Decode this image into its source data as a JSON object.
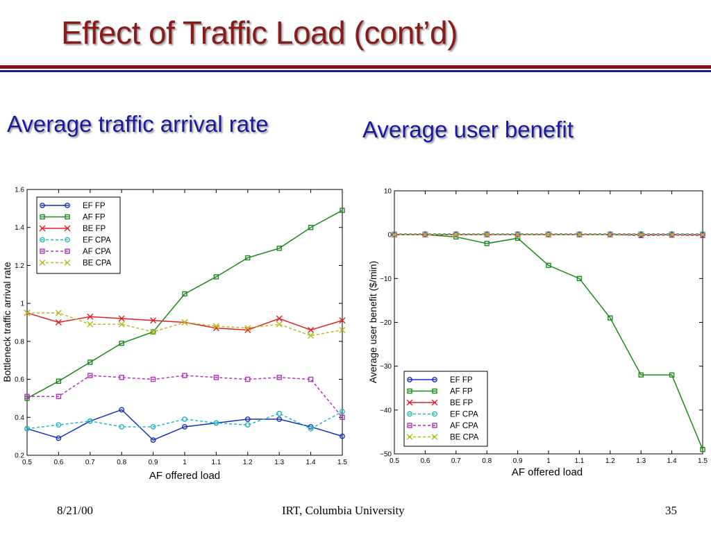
{
  "slide": {
    "title": "Effect of Traffic Load (cont’d)",
    "subtitle_left": "Average traffic arrival rate",
    "subtitle_right": "Average user benefit",
    "footer_date": "8/21/00",
    "footer_org": "IRT, Columbia University",
    "footer_page": "35"
  },
  "colors": {
    "title": "#8b1a1a",
    "subtitle": "#1a1aa0",
    "rule_red": "#8b0d1a",
    "rule_blue": "#1a1a8c",
    "EF": "#1030c0",
    "AF": "#188a18",
    "BE": "#e02020",
    "EF_CPA": "#20b8c0",
    "AF_CPA": "#b030c0",
    "BE_CPA": "#b8b820"
  },
  "chart_data": [
    {
      "type": "line",
      "xlabel": "AF offered load",
      "ylabel": "Bottleneck traffic arrival rate",
      "xlim": [
        0.5,
        1.5
      ],
      "ylim": [
        0.2,
        1.6
      ],
      "xticks": [
        "0.5",
        "0.6",
        "0.7",
        "0.8",
        "0.9",
        "1",
        "1.1",
        "1.2",
        "1.3",
        "1.4",
        "1.5"
      ],
      "yticks": [
        "0.2",
        "0.4",
        "0.6",
        "0.8",
        "1",
        "1.2",
        "1.4",
        "1.6"
      ],
      "legend_position": "top-left",
      "x": [
        0.5,
        0.6,
        0.7,
        0.8,
        0.9,
        1.0,
        1.1,
        1.2,
        1.3,
        1.4,
        1.5
      ],
      "series": [
        {
          "name": "EF FP",
          "color": "#1030c0",
          "dash": false,
          "marker": "circle",
          "values": [
            0.34,
            0.29,
            0.38,
            0.44,
            0.28,
            0.35,
            0.37,
            0.39,
            0.39,
            0.35,
            0.3
          ]
        },
        {
          "name": "AF FP",
          "color": "#188a18",
          "dash": false,
          "marker": "square",
          "values": [
            0.5,
            0.59,
            0.69,
            0.79,
            0.85,
            1.05,
            1.14,
            1.24,
            1.29,
            1.4,
            1.49
          ]
        },
        {
          "name": "BE FP",
          "color": "#e02020",
          "dash": false,
          "marker": "x",
          "values": [
            0.95,
            0.9,
            0.93,
            0.92,
            0.91,
            0.9,
            0.87,
            0.86,
            0.92,
            0.86,
            0.91
          ]
        },
        {
          "name": "EF CPA",
          "color": "#20b8c0",
          "dash": true,
          "marker": "circle",
          "values": [
            0.34,
            0.36,
            0.38,
            0.35,
            0.35,
            0.39,
            0.37,
            0.36,
            0.42,
            0.34,
            0.43
          ]
        },
        {
          "name": "AF CPA",
          "color": "#b030c0",
          "dash": true,
          "marker": "square",
          "values": [
            0.51,
            0.51,
            0.62,
            0.61,
            0.6,
            0.62,
            0.61,
            0.6,
            0.61,
            0.6,
            0.4
          ]
        },
        {
          "name": "BE CPA",
          "color": "#b8b820",
          "dash": true,
          "marker": "x",
          "values": [
            0.95,
            0.95,
            0.89,
            0.89,
            0.85,
            0.9,
            0.88,
            0.87,
            0.89,
            0.83,
            0.86
          ]
        }
      ]
    },
    {
      "type": "line",
      "xlabel": "AF offered load",
      "ylabel": "Average user benefit ($/min)",
      "xlim": [
        0.5,
        1.5
      ],
      "ylim": [
        -50,
        10
      ],
      "xticks": [
        "0.5",
        "0.6",
        "0.7",
        "0.8",
        "0.9",
        "1",
        "1.1",
        "1.2",
        "1.3",
        "1.4",
        "1.5"
      ],
      "yticks": [
        "−50",
        "−40",
        "−30",
        "−20",
        "−10",
        "0",
        "10"
      ],
      "legend_position": "bottom-left",
      "x": [
        0.5,
        0.6,
        0.7,
        0.8,
        0.9,
        1.0,
        1.1,
        1.2,
        1.3,
        1.4,
        1.5
      ],
      "series": [
        {
          "name": "EF FP",
          "color": "#1030c0",
          "dash": false,
          "marker": "circle",
          "values": [
            0,
            0,
            0,
            0,
            0,
            0,
            0,
            0,
            0,
            0,
            0
          ]
        },
        {
          "name": "AF FP",
          "color": "#188a18",
          "dash": false,
          "marker": "square",
          "values": [
            0,
            0,
            -0.5,
            -2,
            -0.8,
            -7,
            -10,
            -19,
            -32,
            -32,
            -49
          ]
        },
        {
          "name": "BE FP",
          "color": "#e02020",
          "dash": false,
          "marker": "x",
          "values": [
            0,
            0,
            0,
            0,
            0,
            0,
            0,
            0,
            0,
            0,
            0
          ]
        },
        {
          "name": "EF CPA",
          "color": "#20b8c0",
          "dash": true,
          "marker": "circle",
          "values": [
            0.2,
            0.2,
            0.2,
            0.2,
            0.2,
            0.2,
            0.2,
            0.2,
            0.2,
            0.2,
            0.2
          ]
        },
        {
          "name": "AF CPA",
          "color": "#b030c0",
          "dash": true,
          "marker": "square",
          "values": [
            0,
            0,
            0,
            0,
            0,
            0,
            0,
            0,
            -0.2,
            -0.1,
            -0.2
          ]
        },
        {
          "name": "BE CPA",
          "color": "#b8b820",
          "dash": true,
          "marker": "x",
          "values": [
            0,
            0,
            0,
            0,
            0,
            0,
            0,
            0,
            0,
            0,
            0
          ]
        }
      ]
    }
  ]
}
